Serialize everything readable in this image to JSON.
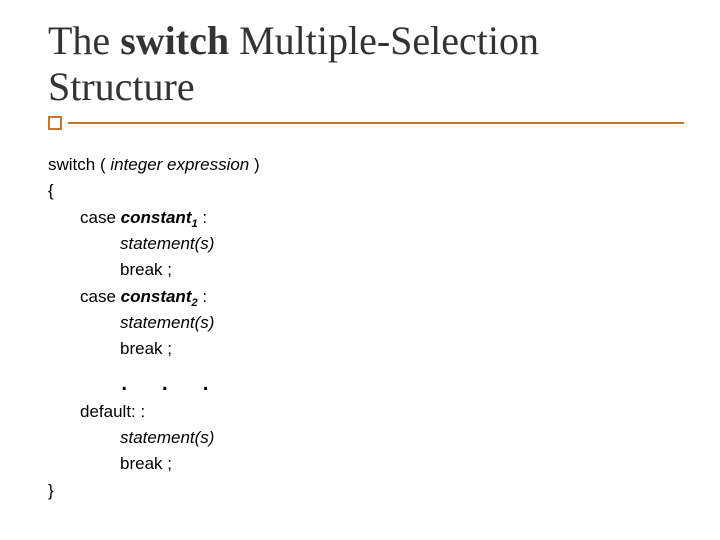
{
  "colors": {
    "background": "#ffffff",
    "title_text": "#333333",
    "body_text": "#000000",
    "accent_rule": "#c0782a"
  },
  "typography": {
    "title_font": "Times New Roman, serif",
    "title_fontsize_pt": 30,
    "body_font": "Arial, sans-serif",
    "body_fontsize_pt": 13
  },
  "title": {
    "prefix": "The ",
    "bold_word": "switch",
    "suffix": " Multiple-Selection Structure"
  },
  "code": {
    "l_switch_kw": "switch ( ",
    "l_switch_expr": "integer expression",
    "l_switch_close": " )",
    "l_open_brace": "{",
    "l_case_kw": "case ",
    "l_constant": "constant",
    "l_sub1": "1",
    "l_sub2": "2",
    "l_colon_sp": " :",
    "l_statements": "statement(s)",
    "l_break": "break ;",
    "l_ellipsis": ". . .",
    "l_default": "default: :",
    "l_close_brace": "}"
  }
}
